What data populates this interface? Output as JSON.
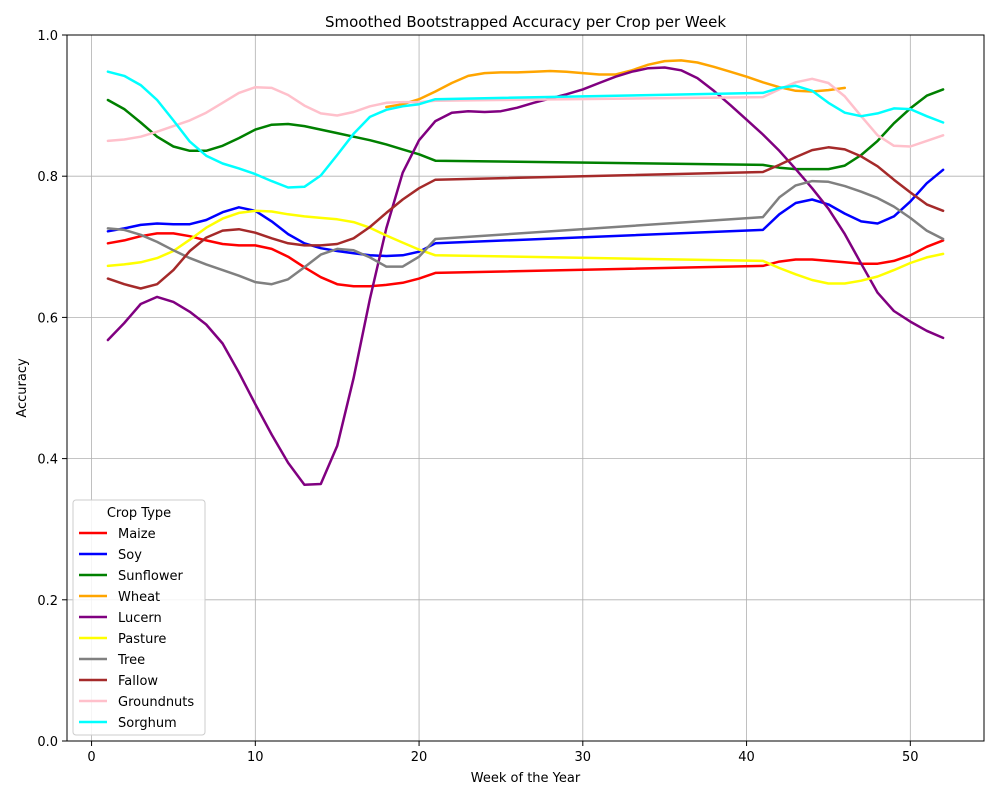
{
  "chart_data": {
    "type": "line",
    "title": "Smoothed Bootstrapped Accuracy per Crop per Week",
    "xlabel": "Week of the Year",
    "ylabel": "Accuracy",
    "xlim": [
      -1.5,
      54.5
    ],
    "ylim": [
      0.0,
      1.0
    ],
    "xticks": [
      0,
      10,
      20,
      30,
      40,
      50
    ],
    "yticks": [
      0.0,
      0.2,
      0.4,
      0.6,
      0.8,
      1.0
    ],
    "grid": true,
    "legend": {
      "title": "Crop Type",
      "placement": "lower-left"
    },
    "series": [
      {
        "name": "Maize",
        "color": "#ff0000",
        "x": [
          1,
          2,
          3,
          4,
          5,
          6,
          7,
          8,
          9,
          10,
          11,
          12,
          13,
          14,
          15,
          16,
          17,
          18,
          19,
          20,
          21,
          41,
          42,
          43,
          44,
          45,
          46,
          47,
          48,
          49,
          50,
          51,
          52
        ],
        "y": [
          0.705,
          0.709,
          0.715,
          0.719,
          0.719,
          0.715,
          0.709,
          0.704,
          0.702,
          0.702,
          0.697,
          0.686,
          0.671,
          0.657,
          0.647,
          0.644,
          0.644,
          0.646,
          0.649,
          0.655,
          0.663,
          0.673,
          0.679,
          0.682,
          0.682,
          0.68,
          0.678,
          0.676,
          0.676,
          0.68,
          0.688,
          0.7,
          0.709
        ]
      },
      {
        "name": "Soy",
        "color": "#0000ff",
        "x": [
          1,
          2,
          3,
          4,
          5,
          6,
          7,
          8,
          9,
          10,
          11,
          12,
          13,
          14,
          15,
          16,
          17,
          18,
          19,
          20,
          21,
          41,
          42,
          43,
          44,
          45,
          46,
          47,
          48,
          49,
          50,
          51,
          52
        ],
        "y": [
          0.722,
          0.726,
          0.731,
          0.733,
          0.732,
          0.732,
          0.738,
          0.749,
          0.756,
          0.751,
          0.736,
          0.718,
          0.705,
          0.698,
          0.694,
          0.691,
          0.688,
          0.687,
          0.688,
          0.693,
          0.705,
          0.724,
          0.746,
          0.762,
          0.767,
          0.76,
          0.747,
          0.736,
          0.733,
          0.743,
          0.764,
          0.79,
          0.809
        ]
      },
      {
        "name": "Sunflower",
        "color": "#008000",
        "x": [
          1,
          2,
          3,
          4,
          5,
          6,
          7,
          8,
          9,
          10,
          11,
          12,
          13,
          14,
          15,
          16,
          17,
          18,
          19,
          20,
          21,
          41,
          42,
          43,
          44,
          45,
          46,
          47,
          48,
          49,
          50,
          51,
          52
        ],
        "y": [
          0.908,
          0.895,
          0.876,
          0.856,
          0.842,
          0.836,
          0.836,
          0.843,
          0.854,
          0.866,
          0.873,
          0.874,
          0.871,
          0.866,
          0.861,
          0.856,
          0.851,
          0.845,
          0.838,
          0.831,
          0.822,
          0.816,
          0.812,
          0.81,
          0.81,
          0.81,
          0.815,
          0.83,
          0.85,
          0.875,
          0.896,
          0.914,
          0.923
        ]
      },
      {
        "name": "Wheat",
        "color": "#ffa500",
        "x": [
          18,
          19,
          20,
          21,
          22,
          23,
          24,
          25,
          26,
          27,
          28,
          29,
          30,
          31,
          32,
          33,
          34,
          35,
          36,
          37,
          38,
          39,
          40,
          41,
          42,
          43,
          44,
          45,
          46
        ],
        "y": [
          0.898,
          0.902,
          0.909,
          0.92,
          0.932,
          0.942,
          0.946,
          0.947,
          0.947,
          0.948,
          0.949,
          0.948,
          0.946,
          0.944,
          0.944,
          0.95,
          0.958,
          0.963,
          0.964,
          0.961,
          0.955,
          0.948,
          0.941,
          0.933,
          0.926,
          0.921,
          0.92,
          0.922,
          0.925
        ]
      },
      {
        "name": "Lucern",
        "color": "#800080",
        "x": [
          1,
          2,
          3,
          4,
          5,
          6,
          7,
          8,
          9,
          10,
          11,
          12,
          13,
          14,
          15,
          16,
          17,
          18,
          19,
          20,
          21,
          22,
          23,
          24,
          25,
          26,
          27,
          28,
          29,
          30,
          31,
          32,
          33,
          34,
          35,
          36,
          37,
          38,
          39,
          40,
          41,
          42,
          43,
          44,
          45,
          46,
          47,
          48,
          49,
          50,
          51,
          52
        ],
        "y": [
          0.568,
          0.592,
          0.619,
          0.629,
          0.622,
          0.608,
          0.59,
          0.563,
          0.522,
          0.477,
          0.434,
          0.394,
          0.363,
          0.364,
          0.418,
          0.514,
          0.626,
          0.726,
          0.805,
          0.851,
          0.878,
          0.89,
          0.892,
          0.891,
          0.892,
          0.897,
          0.904,
          0.91,
          0.916,
          0.923,
          0.932,
          0.941,
          0.948,
          0.953,
          0.954,
          0.95,
          0.939,
          0.921,
          0.901,
          0.88,
          0.859,
          0.836,
          0.81,
          0.783,
          0.754,
          0.718,
          0.676,
          0.635,
          0.609,
          0.594,
          0.581,
          0.571
        ]
      },
      {
        "name": "Pasture",
        "color": "#ffff00",
        "x": [
          1,
          2,
          3,
          4,
          5,
          6,
          7,
          8,
          9,
          10,
          11,
          12,
          13,
          14,
          15,
          16,
          17,
          18,
          19,
          20,
          21,
          41,
          42,
          43,
          44,
          45,
          46,
          47,
          48,
          49,
          50,
          51,
          52
        ],
        "y": [
          0.673,
          0.675,
          0.678,
          0.684,
          0.694,
          0.71,
          0.727,
          0.74,
          0.748,
          0.751,
          0.75,
          0.746,
          0.743,
          0.741,
          0.739,
          0.735,
          0.727,
          0.716,
          0.706,
          0.696,
          0.688,
          0.68,
          0.67,
          0.661,
          0.653,
          0.648,
          0.648,
          0.652,
          0.658,
          0.667,
          0.677,
          0.685,
          0.69
        ]
      },
      {
        "name": "Tree",
        "color": "#808080",
        "x": [
          1,
          2,
          3,
          4,
          5,
          6,
          7,
          8,
          9,
          10,
          11,
          12,
          13,
          14,
          15,
          16,
          17,
          18,
          19,
          20,
          21,
          41,
          42,
          43,
          44,
          45,
          46,
          47,
          48,
          49,
          50,
          51,
          52
        ],
        "y": [
          0.726,
          0.724,
          0.717,
          0.707,
          0.695,
          0.684,
          0.675,
          0.667,
          0.659,
          0.65,
          0.647,
          0.654,
          0.671,
          0.689,
          0.697,
          0.695,
          0.685,
          0.672,
          0.672,
          0.686,
          0.711,
          0.742,
          0.77,
          0.787,
          0.793,
          0.792,
          0.786,
          0.778,
          0.769,
          0.757,
          0.741,
          0.723,
          0.711
        ]
      },
      {
        "name": "Fallow",
        "color": "#a52a2a",
        "x": [
          1,
          2,
          3,
          4,
          5,
          6,
          7,
          8,
          9,
          10,
          11,
          12,
          13,
          14,
          15,
          16,
          17,
          18,
          19,
          20,
          21,
          41,
          42,
          43,
          44,
          45,
          46,
          47,
          48,
          49,
          50,
          51,
          52
        ],
        "y": [
          0.655,
          0.647,
          0.641,
          0.647,
          0.667,
          0.694,
          0.713,
          0.723,
          0.725,
          0.72,
          0.712,
          0.705,
          0.702,
          0.702,
          0.704,
          0.712,
          0.728,
          0.748,
          0.767,
          0.783,
          0.795,
          0.806,
          0.816,
          0.827,
          0.837,
          0.841,
          0.838,
          0.828,
          0.814,
          0.795,
          0.777,
          0.76,
          0.751
        ]
      },
      {
        "name": "Groundnuts",
        "color": "#ffc0cb",
        "x": [
          1,
          2,
          3,
          4,
          5,
          6,
          7,
          8,
          9,
          10,
          11,
          12,
          13,
          14,
          15,
          16,
          17,
          18,
          19,
          20,
          21,
          41,
          42,
          43,
          44,
          45,
          46,
          47,
          48,
          49,
          50,
          51,
          52
        ],
        "y": [
          0.85,
          0.852,
          0.856,
          0.863,
          0.871,
          0.879,
          0.89,
          0.904,
          0.918,
          0.926,
          0.925,
          0.915,
          0.9,
          0.889,
          0.886,
          0.891,
          0.899,
          0.904,
          0.905,
          0.905,
          0.907,
          0.912,
          0.923,
          0.933,
          0.938,
          0.932,
          0.913,
          0.885,
          0.858,
          0.843,
          0.842,
          0.85,
          0.858
        ]
      },
      {
        "name": "Sorghum",
        "color": "#00ffff",
        "x": [
          1,
          2,
          3,
          4,
          5,
          6,
          7,
          8,
          9,
          10,
          11,
          12,
          13,
          14,
          15,
          16,
          17,
          18,
          19,
          20,
          21,
          41,
          42,
          43,
          44,
          45,
          46,
          47,
          48,
          49,
          50,
          51,
          52
        ],
        "y": [
          0.948,
          0.942,
          0.929,
          0.908,
          0.879,
          0.849,
          0.829,
          0.818,
          0.811,
          0.803,
          0.793,
          0.784,
          0.785,
          0.801,
          0.83,
          0.86,
          0.884,
          0.894,
          0.899,
          0.902,
          0.909,
          0.918,
          0.925,
          0.928,
          0.921,
          0.904,
          0.89,
          0.885,
          0.889,
          0.896,
          0.895,
          0.885,
          0.876
        ]
      }
    ]
  }
}
